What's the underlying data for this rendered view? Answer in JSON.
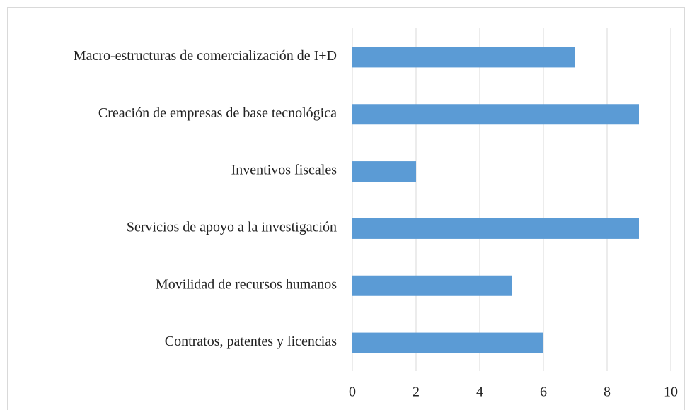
{
  "chart_data": {
    "type": "bar",
    "orientation": "horizontal",
    "categories": [
      "Macro-estructuras de comercialización de I+D",
      "Creación de empresas de base tecnológica",
      "Inventivos fiscales",
      "Servicios de apoyo a la investigación",
      "Movilidad de recursos humanos",
      "Contratos, patentes y licencias"
    ],
    "values": [
      7,
      9,
      2,
      9,
      5,
      6
    ],
    "color": "#5b9bd5",
    "xlim": [
      0,
      10
    ],
    "xticks": [
      0,
      2,
      4,
      6,
      8,
      10
    ],
    "grid": true
  }
}
